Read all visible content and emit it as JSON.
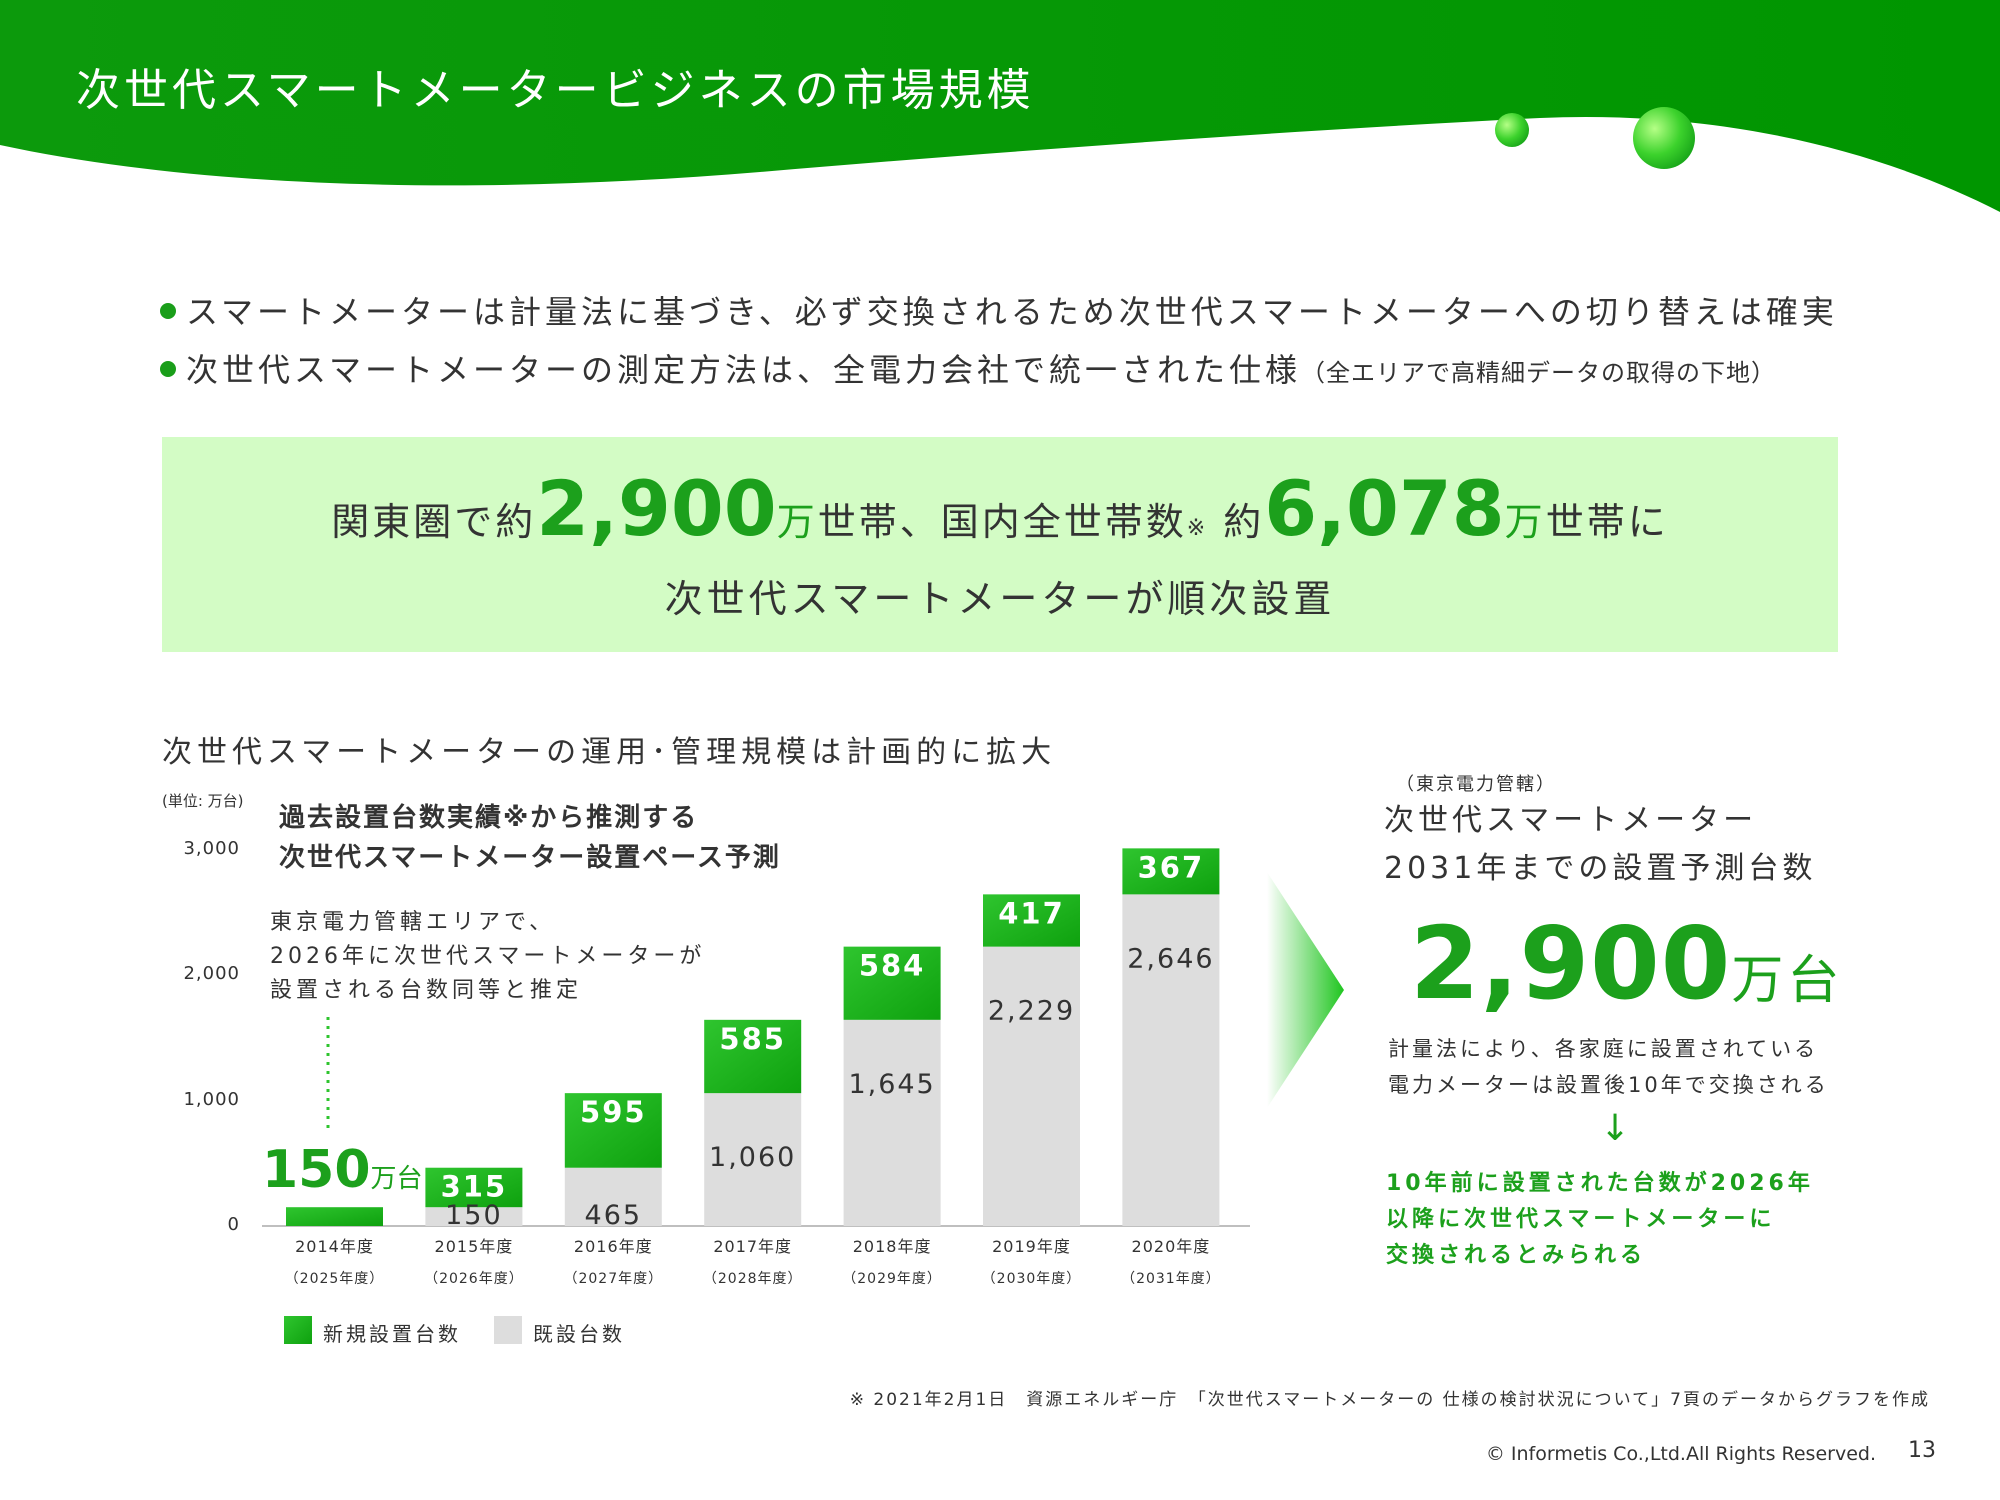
{
  "header": {
    "title": "次世代スマートメータービジネスの市場規模"
  },
  "bullets": [
    {
      "text": "スマートメーターは計量法に基づき、必ず交換されるため次世代スマートメーターへの切り替えは確実",
      "note": ""
    },
    {
      "text": "次世代スマートメーターの測定方法は、全電力会社で統一された仕様",
      "note": "（全エリアで高精細データの取得の下地）"
    }
  ],
  "highlight": {
    "part1": "関東圏で約",
    "num1": "2,900",
    "unit1": "万",
    "part2": "世帯、国内全世帯数",
    "asterisk": "※",
    "part3": " 約",
    "num2": "6,078",
    "unit2": "万",
    "part4": "世帯に",
    "line2": "次世代スマートメーターが順次設置"
  },
  "chart_heading": "次世代スマートメーターの運用･管理規模は計画的に拡大",
  "chart_annotations": {
    "title_line1": "過去設置台数実績※から推測する",
    "title_line2": "次世代スマートメーター設置ペース予測",
    "left_note_1": "東京電力管轄エリアで、",
    "left_note_2": "2026年に次世代スマートメーターが",
    "left_note_3": "設置される台数同等と推定",
    "first_total": "150",
    "first_total_unit": "万台"
  },
  "chart_data": {
    "type": "bar",
    "stacked": true,
    "unit_label": "(単位: 万台)",
    "categories": [
      "2014年度",
      "2015年度",
      "2016年度",
      "2017年度",
      "2018年度",
      "2019年度",
      "2020年度"
    ],
    "sub_categories": [
      "（2025年度）",
      "（2026年度）",
      "（2027年度）",
      "（2028年度）",
      "（2029年度）",
      "（2030年度）",
      "（2031年度）"
    ],
    "series": [
      {
        "name": "既設台数",
        "values": [
          0,
          150,
          465,
          1060,
          1645,
          2229,
          2646
        ],
        "color": "#dddddd"
      },
      {
        "name": "新規設置台数",
        "values": [
          150,
          315,
          595,
          585,
          584,
          417,
          367
        ],
        "color": "#22b422"
      }
    ],
    "value_labels_existing": [
      "",
      "150",
      "465",
      "1,060",
      "1,645",
      "2,229",
      "2,646"
    ],
    "value_labels_new": [
      "",
      "315",
      "595",
      "585",
      "584",
      "417",
      "367"
    ],
    "yticks": [
      0,
      1000,
      2000,
      3000
    ],
    "ytick_labels": [
      "0",
      "1,000",
      "2,000",
      "3,000"
    ],
    "ylim": [
      0,
      3000
    ],
    "grid": false,
    "legend_position": "bottom-left"
  },
  "right_panel": {
    "region": "（東京電力管轄）",
    "title_line1": "次世代スマートメーター",
    "title_line2": "2031年までの設置予測台数",
    "big_number": "2,900",
    "big_unit": "万台",
    "desc_line1": "計量法により、各家庭に設置されている",
    "desc_line2": "電力メーターは設置後10年で交換される",
    "arrow": "↓",
    "conclusion_line1": "10年前に設置された台数が2026年",
    "conclusion_line2": "以降に次世代スマートメーターに",
    "conclusion_line3": "交換されるとみられる"
  },
  "footnote": "※ 2021年2月1日　資源エネルギー庁　「次世代スマートメーターの 仕様の検討状況について」7頁のデータからグラフを作成",
  "copyright": "© Informetis Co.,Ltd.All Rights Reserved.",
  "page_number": "13",
  "colors": {
    "brand_green": "#1ca01c",
    "highlight_bg": "#d3fcc5",
    "existing_bar": "#dddddd",
    "new_bar": "#22b422"
  }
}
